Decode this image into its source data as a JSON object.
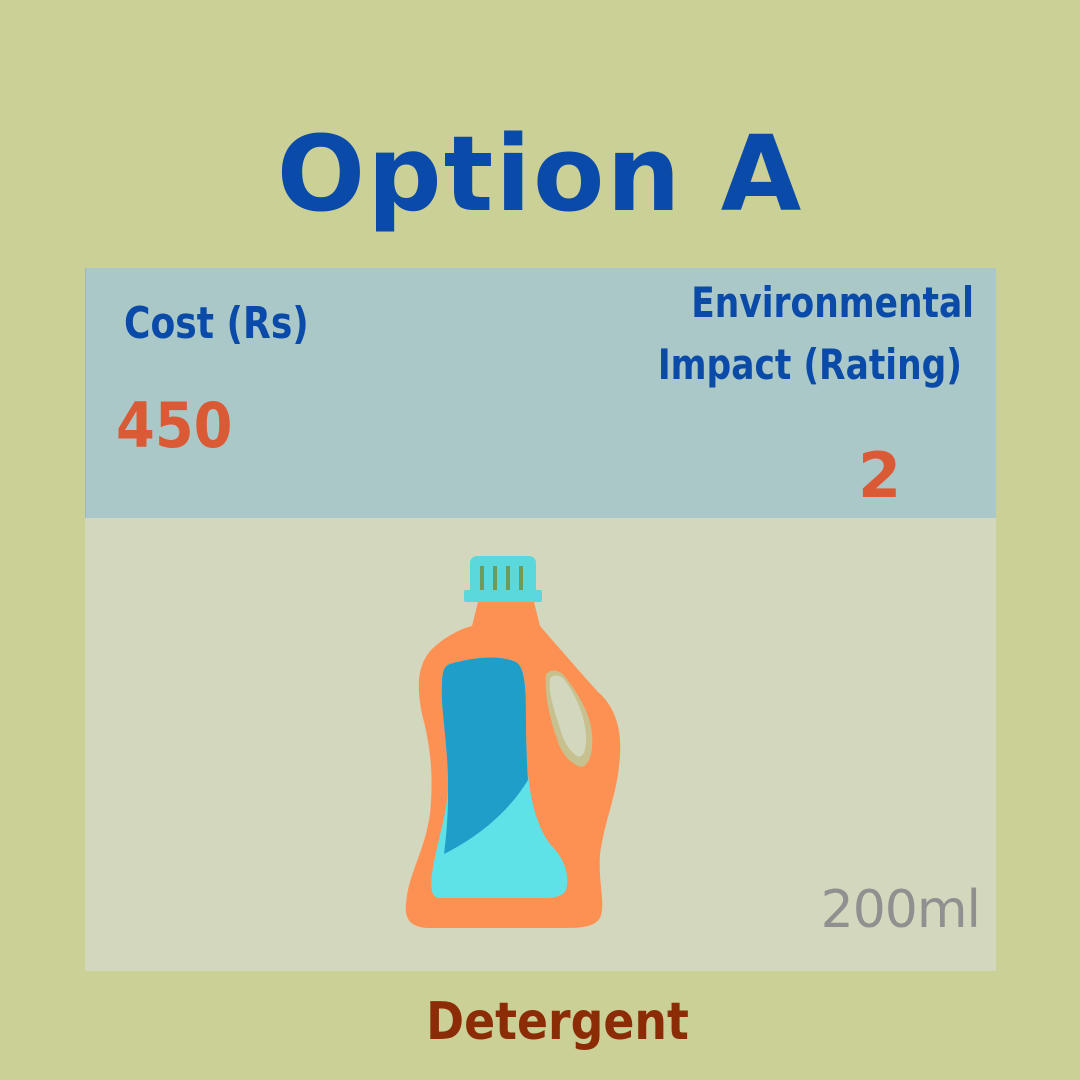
{
  "header": {
    "title": "Option A"
  },
  "cost": {
    "label": "Cost (Rs)",
    "value": "450"
  },
  "environmental_impact": {
    "label_line1": "Environmental",
    "label_line2": "Impact (Rating)",
    "value": "2"
  },
  "product": {
    "icon": "detergent-bottle-icon",
    "volume": "200ml",
    "name": "Detergent"
  },
  "colors": {
    "background": "#cbd096",
    "title": "#0a4aa8",
    "value": "#db5a36",
    "info_panel": "#abc8c8",
    "product_panel": "#d3d7bd",
    "product_name": "#8b2c06"
  }
}
